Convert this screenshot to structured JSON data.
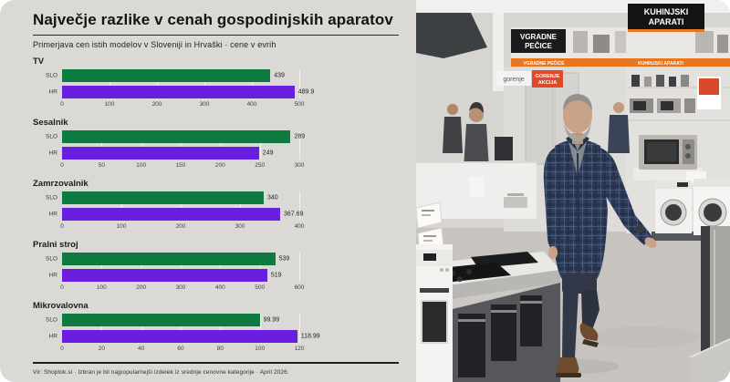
{
  "card": {
    "title": "Največje razlike v cenah gospodinjskih aparatov",
    "subtitle": "Primerjava cen istih modelov v Sloveniji in Hrvaški · cene v evrih",
    "source_note": "Vir: Shoptok.si · Izbran je bil najpopularnejši izdelek iz srednje cenovne kategorije · April 2026."
  },
  "colors": {
    "slo_bar": "#0d7a40",
    "hr_bar": "#6a1ee0",
    "card_background": "#dbd9d5",
    "accent_orange": "#e8761f",
    "sign_black": "#141517",
    "akcija_red": "#df4a2a"
  },
  "chart_data": [
    {
      "type": "bar",
      "orientation": "horizontal",
      "title": "TV",
      "categories": [
        "SLO",
        "HR"
      ],
      "values": [
        439,
        489.9
      ],
      "xlim": [
        0,
        500
      ],
      "ticks": [
        0,
        100,
        200,
        300,
        400,
        500
      ]
    },
    {
      "type": "bar",
      "orientation": "horizontal",
      "title": "Sesalnik",
      "categories": [
        "SLO",
        "HR"
      ],
      "values": [
        289,
        249
      ],
      "xlim": [
        0,
        300
      ],
      "ticks": [
        0,
        50,
        100,
        150,
        200,
        250,
        300
      ]
    },
    {
      "type": "bar",
      "orientation": "horizontal",
      "title": "Zamrzovalnik",
      "categories": [
        "SLO",
        "HR"
      ],
      "values": [
        340,
        367.69
      ],
      "xlim": [
        0,
        400
      ],
      "ticks": [
        0,
        100,
        200,
        300,
        400
      ]
    },
    {
      "type": "bar",
      "orientation": "horizontal",
      "title": "Pralni stroj",
      "categories": [
        "SLO",
        "HR"
      ],
      "values": [
        539,
        519
      ],
      "xlim": [
        0,
        600
      ],
      "ticks": [
        0,
        100,
        200,
        300,
        400,
        500,
        600
      ]
    },
    {
      "type": "bar",
      "orientation": "horizontal",
      "title": "Mikrovalovna",
      "categories": [
        "SLO",
        "HR"
      ],
      "values": [
        99.99,
        118.99
      ],
      "xlim": [
        0,
        120
      ],
      "ticks": [
        0,
        20,
        40,
        60,
        80,
        100,
        120
      ]
    }
  ],
  "photo": {
    "signs": {
      "kuhinjski_line1": "KUHINJSKI",
      "kuhinjski_line2": "APARATI",
      "vgradne_line1": "VGRADNE",
      "vgradne_line2": "PEČICE",
      "strip_left": "VGRADNE PEČICE",
      "strip_right": "KUHINJSKI APARATI",
      "gorenje_logo": "gorenje",
      "akcija_line1": "GORENJE",
      "akcija_line2": "AKCIJA"
    }
  }
}
